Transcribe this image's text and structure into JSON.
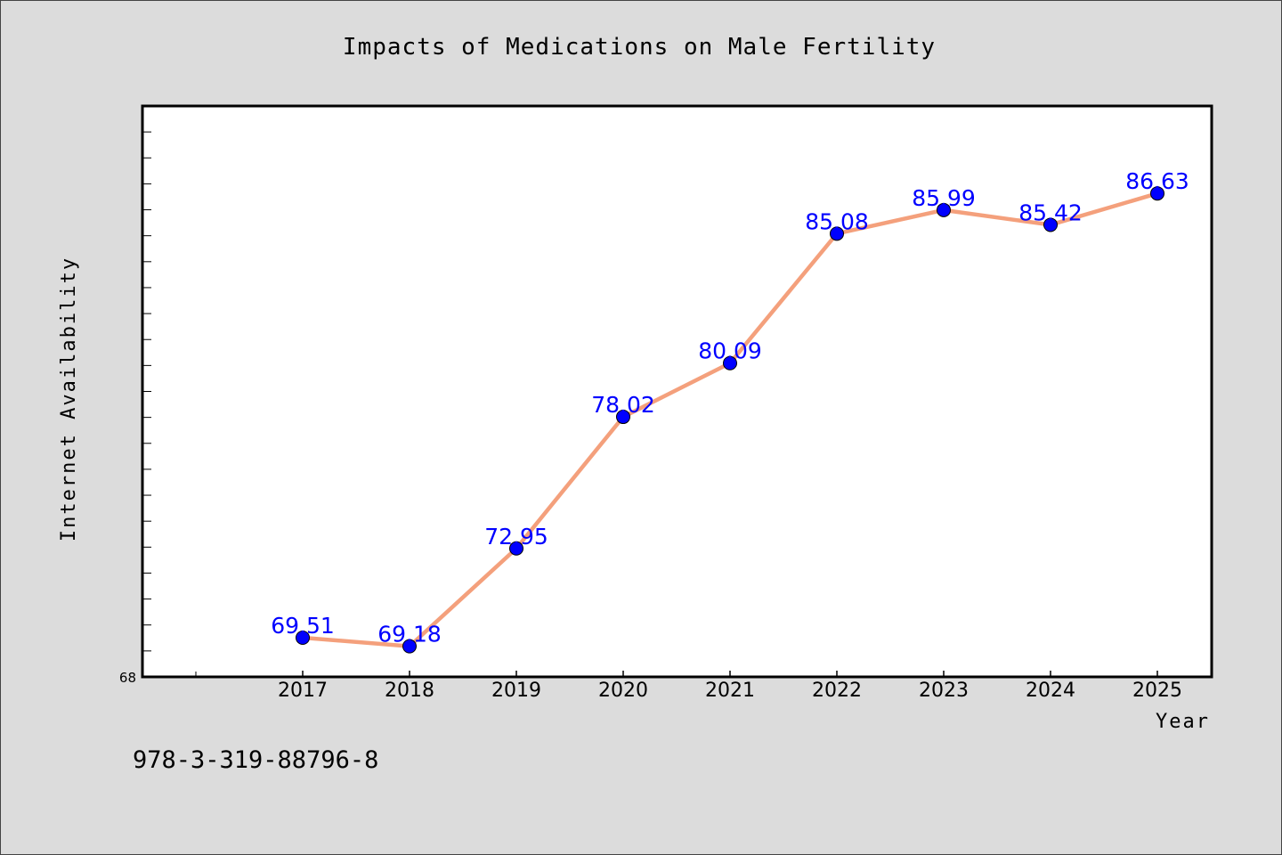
{
  "chart_data": {
    "type": "line",
    "title": "Impacts of Medications on Male Fertility",
    "xlabel": "Year",
    "ylabel": "Internet Availability",
    "categories": [
      "2017",
      "2018",
      "2019",
      "2020",
      "2021",
      "2022",
      "2023",
      "2024",
      "2025"
    ],
    "series": [
      {
        "values": [
          69.51,
          69.18,
          72.95,
          78.02,
          80.09,
          85.08,
          85.99,
          85.42,
          86.63
        ],
        "labels": [
          "69.51",
          "69.18",
          "72.95",
          "78.02",
          "80.09",
          "85.08",
          "85.99",
          "85.42",
          "86.63"
        ],
        "line_color": "#f4a07c",
        "marker_color": "#0000ff"
      }
    ],
    "ylim": [
      68,
      90
    ],
    "y_tick_labels": [
      "68"
    ],
    "grid": false,
    "legend": false
  },
  "note": "978-3-319-88796-8"
}
